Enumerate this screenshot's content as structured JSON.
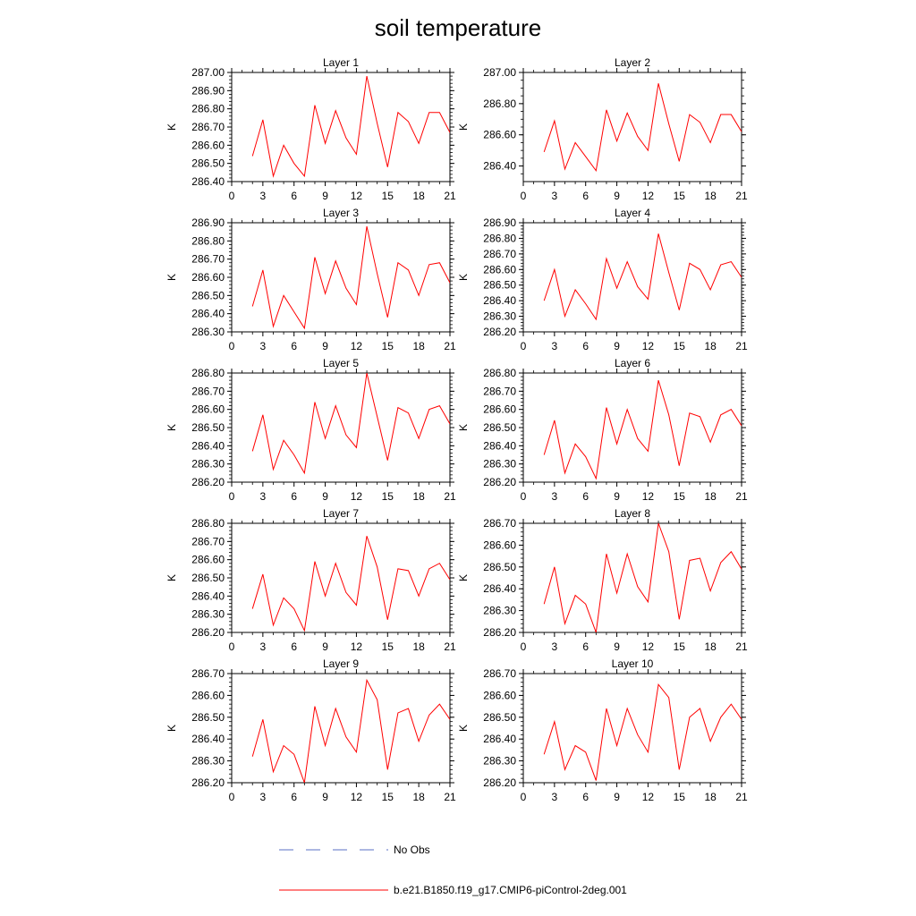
{
  "page": {
    "title": "soil temperature"
  },
  "chart_data": [
    {
      "type": "line",
      "title": "Layer 1",
      "ylabel": "K",
      "xlim": [
        0,
        21
      ],
      "ylim": [
        286.4,
        287.0
      ],
      "xticks": [
        0,
        3,
        6,
        9,
        12,
        15,
        18,
        21
      ],
      "xticklabels": [
        "0",
        "3",
        "6",
        "9",
        "12",
        "15",
        "18",
        "21"
      ],
      "yticks": [
        286.4,
        286.5,
        286.6,
        286.7,
        286.8,
        286.9,
        287.0
      ],
      "yticklabels": [
        "286.40",
        "286.50",
        "286.60",
        "286.70",
        "286.80",
        "286.90",
        "287.00"
      ],
      "series": [
        {
          "name": "b.e21.B1850.f19_g17.CMIP6-piControl-2deg.001",
          "color": "#ff0000",
          "x": [
            2,
            3,
            4,
            5,
            6,
            7,
            8,
            9,
            10,
            11,
            12,
            13,
            14,
            15,
            16,
            17,
            18,
            19,
            20,
            21
          ],
          "y": [
            286.54,
            286.74,
            286.43,
            286.6,
            286.5,
            286.43,
            286.82,
            286.61,
            286.79,
            286.64,
            286.55,
            286.98,
            286.72,
            286.48,
            286.78,
            286.73,
            286.61,
            286.78,
            286.78,
            286.67
          ]
        }
      ]
    },
    {
      "type": "line",
      "title": "Layer 2",
      "ylabel": "K",
      "xlim": [
        0,
        21
      ],
      "ylim": [
        286.3,
        287.0
      ],
      "xticks": [
        0,
        3,
        6,
        9,
        12,
        15,
        18,
        21
      ],
      "xticklabels": [
        "0",
        "3",
        "6",
        "9",
        "12",
        "15",
        "18",
        "21"
      ],
      "yticks": [
        286.4,
        286.6,
        286.8,
        287.0
      ],
      "yticklabels": [
        "286.40",
        "286.60",
        "286.80",
        "287.00"
      ],
      "series": [
        {
          "name": "b.e21.B1850.f19_g17.CMIP6-piControl-2deg.001",
          "color": "#ff0000",
          "x": [
            2,
            3,
            4,
            5,
            6,
            7,
            8,
            9,
            10,
            11,
            12,
            13,
            14,
            15,
            16,
            17,
            18,
            19,
            20,
            21
          ],
          "y": [
            286.49,
            286.69,
            286.38,
            286.55,
            286.46,
            286.37,
            286.76,
            286.56,
            286.74,
            286.59,
            286.5,
            286.93,
            286.67,
            286.43,
            286.73,
            286.68,
            286.55,
            286.73,
            286.73,
            286.62
          ]
        }
      ]
    },
    {
      "type": "line",
      "title": "Layer 3",
      "ylabel": "K",
      "xlim": [
        0,
        21
      ],
      "ylim": [
        286.3,
        286.9
      ],
      "xticks": [
        0,
        3,
        6,
        9,
        12,
        15,
        18,
        21
      ],
      "xticklabels": [
        "0",
        "3",
        "6",
        "9",
        "12",
        "15",
        "18",
        "21"
      ],
      "yticks": [
        286.3,
        286.4,
        286.5,
        286.6,
        286.7,
        286.8,
        286.9
      ],
      "yticklabels": [
        "286.30",
        "286.40",
        "286.50",
        "286.60",
        "286.70",
        "286.80",
        "286.90"
      ],
      "series": [
        {
          "name": "b.e21.B1850.f19_g17.CMIP6-piControl-2deg.001",
          "color": "#ff0000",
          "x": [
            2,
            3,
            4,
            5,
            6,
            7,
            8,
            9,
            10,
            11,
            12,
            13,
            14,
            15,
            16,
            17,
            18,
            19,
            20,
            21
          ],
          "y": [
            286.44,
            286.64,
            286.33,
            286.5,
            286.41,
            286.32,
            286.71,
            286.51,
            286.69,
            286.54,
            286.45,
            286.88,
            286.62,
            286.38,
            286.68,
            286.64,
            286.5,
            286.67,
            286.68,
            286.57
          ]
        }
      ]
    },
    {
      "type": "line",
      "title": "Layer 4",
      "ylabel": "K",
      "xlim": [
        0,
        21
      ],
      "ylim": [
        286.2,
        286.9
      ],
      "xticks": [
        0,
        3,
        6,
        9,
        12,
        15,
        18,
        21
      ],
      "xticklabels": [
        "0",
        "3",
        "6",
        "9",
        "12",
        "15",
        "18",
        "21"
      ],
      "yticks": [
        286.2,
        286.3,
        286.4,
        286.5,
        286.6,
        286.7,
        286.8,
        286.9
      ],
      "yticklabels": [
        "286.20",
        "286.30",
        "286.40",
        "286.50",
        "286.60",
        "286.70",
        "286.80",
        "286.90"
      ],
      "series": [
        {
          "name": "b.e21.B1850.f19_g17.CMIP6-piControl-2deg.001",
          "color": "#ff0000",
          "x": [
            2,
            3,
            4,
            5,
            6,
            7,
            8,
            9,
            10,
            11,
            12,
            13,
            14,
            15,
            16,
            17,
            18,
            19,
            20,
            21
          ],
          "y": [
            286.4,
            286.6,
            286.3,
            286.47,
            286.38,
            286.28,
            286.67,
            286.48,
            286.65,
            286.49,
            286.41,
            286.83,
            286.58,
            286.34,
            286.64,
            286.6,
            286.47,
            286.63,
            286.65,
            286.55
          ]
        }
      ]
    },
    {
      "type": "line",
      "title": "Layer 5",
      "ylabel": "K",
      "xlim": [
        0,
        21
      ],
      "ylim": [
        286.2,
        286.8
      ],
      "xticks": [
        0,
        3,
        6,
        9,
        12,
        15,
        18,
        21
      ],
      "xticklabels": [
        "0",
        "3",
        "6",
        "9",
        "12",
        "15",
        "18",
        "21"
      ],
      "yticks": [
        286.2,
        286.3,
        286.4,
        286.5,
        286.6,
        286.7,
        286.8
      ],
      "yticklabels": [
        "286.20",
        "286.30",
        "286.40",
        "286.50",
        "286.60",
        "286.70",
        "286.80"
      ],
      "series": [
        {
          "name": "b.e21.B1850.f19_g17.CMIP6-piControl-2deg.001",
          "color": "#ff0000",
          "x": [
            2,
            3,
            4,
            5,
            6,
            7,
            8,
            9,
            10,
            11,
            12,
            13,
            14,
            15,
            16,
            17,
            18,
            19,
            20,
            21
          ],
          "y": [
            286.37,
            286.57,
            286.27,
            286.43,
            286.35,
            286.25,
            286.64,
            286.44,
            286.62,
            286.46,
            286.39,
            286.8,
            286.56,
            286.32,
            286.61,
            286.58,
            286.44,
            286.6,
            286.62,
            286.52
          ]
        }
      ]
    },
    {
      "type": "line",
      "title": "Layer 6",
      "ylabel": "K",
      "xlim": [
        0,
        21
      ],
      "ylim": [
        286.2,
        286.8
      ],
      "xticks": [
        0,
        3,
        6,
        9,
        12,
        15,
        18,
        21
      ],
      "xticklabels": [
        "0",
        "3",
        "6",
        "9",
        "12",
        "15",
        "18",
        "21"
      ],
      "yticks": [
        286.2,
        286.3,
        286.4,
        286.5,
        286.6,
        286.7,
        286.8
      ],
      "yticklabels": [
        "286.20",
        "286.30",
        "286.40",
        "286.50",
        "286.60",
        "286.70",
        "286.80"
      ],
      "series": [
        {
          "name": "b.e21.B1850.f19_g17.CMIP6-piControl-2deg.001",
          "color": "#ff0000",
          "x": [
            2,
            3,
            4,
            5,
            6,
            7,
            8,
            9,
            10,
            11,
            12,
            13,
            14,
            15,
            16,
            17,
            18,
            19,
            20,
            21
          ],
          "y": [
            286.35,
            286.54,
            286.25,
            286.41,
            286.34,
            286.22,
            286.61,
            286.41,
            286.6,
            286.44,
            286.37,
            286.76,
            286.57,
            286.29,
            286.58,
            286.56,
            286.42,
            286.57,
            286.6,
            286.51
          ]
        }
      ]
    },
    {
      "type": "line",
      "title": "Layer 7",
      "ylabel": "K",
      "xlim": [
        0,
        21
      ],
      "ylim": [
        286.2,
        286.8
      ],
      "xticks": [
        0,
        3,
        6,
        9,
        12,
        15,
        18,
        21
      ],
      "xticklabels": [
        "0",
        "3",
        "6",
        "9",
        "12",
        "15",
        "18",
        "21"
      ],
      "yticks": [
        286.2,
        286.3,
        286.4,
        286.5,
        286.6,
        286.7,
        286.8
      ],
      "yticklabels": [
        "286.20",
        "286.30",
        "286.40",
        "286.50",
        "286.60",
        "286.70",
        "286.80"
      ],
      "series": [
        {
          "name": "b.e21.B1850.f19_g17.CMIP6-piControl-2deg.001",
          "color": "#ff0000",
          "x": [
            2,
            3,
            4,
            5,
            6,
            7,
            8,
            9,
            10,
            11,
            12,
            13,
            14,
            15,
            16,
            17,
            18,
            19,
            20,
            21
          ],
          "y": [
            286.33,
            286.52,
            286.24,
            286.39,
            286.33,
            286.21,
            286.59,
            286.4,
            286.58,
            286.42,
            286.35,
            286.73,
            286.56,
            286.27,
            286.55,
            286.54,
            286.4,
            286.55,
            286.58,
            286.49
          ]
        }
      ]
    },
    {
      "type": "line",
      "title": "Layer 8",
      "ylabel": "K",
      "xlim": [
        0,
        21
      ],
      "ylim": [
        286.2,
        286.7
      ],
      "xticks": [
        0,
        3,
        6,
        9,
        12,
        15,
        18,
        21
      ],
      "xticklabels": [
        "0",
        "3",
        "6",
        "9",
        "12",
        "15",
        "18",
        "21"
      ],
      "yticks": [
        286.2,
        286.3,
        286.4,
        286.5,
        286.6,
        286.7
      ],
      "yticklabels": [
        "286.20",
        "286.30",
        "286.40",
        "286.50",
        "286.60",
        "286.70"
      ],
      "series": [
        {
          "name": "b.e21.B1850.f19_g17.CMIP6-piControl-2deg.001",
          "color": "#ff0000",
          "x": [
            2,
            3,
            4,
            5,
            6,
            7,
            8,
            9,
            10,
            11,
            12,
            13,
            14,
            15,
            16,
            17,
            18,
            19,
            20,
            21
          ],
          "y": [
            286.33,
            286.5,
            286.24,
            286.37,
            286.33,
            286.2,
            286.56,
            286.38,
            286.56,
            286.41,
            286.34,
            286.7,
            286.57,
            286.26,
            286.53,
            286.54,
            286.39,
            286.52,
            286.57,
            286.49
          ]
        }
      ]
    },
    {
      "type": "line",
      "title": "Layer 9",
      "ylabel": "K",
      "xlim": [
        0,
        21
      ],
      "ylim": [
        286.2,
        286.7
      ],
      "xticks": [
        0,
        3,
        6,
        9,
        12,
        15,
        18,
        21
      ],
      "xticklabels": [
        "0",
        "3",
        "6",
        "9",
        "12",
        "15",
        "18",
        "21"
      ],
      "yticks": [
        286.2,
        286.3,
        286.4,
        286.5,
        286.6,
        286.7
      ],
      "yticklabels": [
        "286.20",
        "286.30",
        "286.40",
        "286.50",
        "286.60",
        "286.70"
      ],
      "series": [
        {
          "name": "b.e21.B1850.f19_g17.CMIP6-piControl-2deg.001",
          "color": "#ff0000",
          "x": [
            2,
            3,
            4,
            5,
            6,
            7,
            8,
            9,
            10,
            11,
            12,
            13,
            14,
            15,
            16,
            17,
            18,
            19,
            20,
            21
          ],
          "y": [
            286.32,
            286.49,
            286.25,
            286.37,
            286.33,
            286.2,
            286.55,
            286.37,
            286.54,
            286.41,
            286.34,
            286.67,
            286.58,
            286.26,
            286.52,
            286.54,
            286.39,
            286.51,
            286.56,
            286.49
          ]
        }
      ]
    },
    {
      "type": "line",
      "title": "Layer 10",
      "ylabel": "K",
      "xlim": [
        0,
        21
      ],
      "ylim": [
        286.2,
        286.7
      ],
      "xticks": [
        0,
        3,
        6,
        9,
        12,
        15,
        18,
        21
      ],
      "xticklabels": [
        "0",
        "3",
        "6",
        "9",
        "12",
        "15",
        "18",
        "21"
      ],
      "yticks": [
        286.2,
        286.3,
        286.4,
        286.5,
        286.6,
        286.7
      ],
      "yticklabels": [
        "286.20",
        "286.30",
        "286.40",
        "286.50",
        "286.60",
        "286.70"
      ],
      "series": [
        {
          "name": "b.e21.B1850.f19_g17.CMIP6-piControl-2deg.001",
          "color": "#ff0000",
          "x": [
            2,
            3,
            4,
            5,
            6,
            7,
            8,
            9,
            10,
            11,
            12,
            13,
            14,
            15,
            16,
            17,
            18,
            19,
            20,
            21
          ],
          "y": [
            286.33,
            286.48,
            286.26,
            286.37,
            286.34,
            286.21,
            286.54,
            286.37,
            286.54,
            286.42,
            286.34,
            286.65,
            286.59,
            286.26,
            286.5,
            286.54,
            286.39,
            286.5,
            286.56,
            286.49
          ]
        }
      ]
    }
  ],
  "legend": {
    "position": "bottom",
    "items": [
      {
        "label": "No Obs",
        "color": "#5a6fc6",
        "dash": "dashed"
      },
      {
        "label": "b.e21.B1850.f19_g17.CMIP6-piControl-2deg.001",
        "color": "#ff0000",
        "dash": "solid"
      }
    ]
  }
}
